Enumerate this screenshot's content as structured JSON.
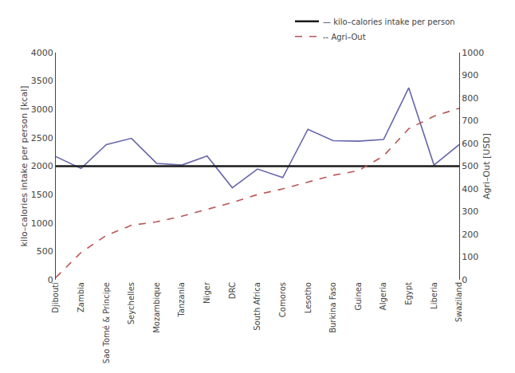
{
  "chart_data": {
    "type": "line",
    "categories": [
      "Djibouti",
      "Zambia",
      "Sao Tomé & Principe",
      "Seychelles",
      "Mozambique",
      "Tanzania",
      "Niger",
      "DRC",
      "South Africa",
      "Comoros",
      "Lesotho",
      "Burkina Faso",
      "Guinea",
      "Algeria",
      "Egypt",
      "Liberia",
      "Swaziland"
    ],
    "series": [
      {
        "values": [
          2170,
          1960,
          2380,
          2490,
          2050,
          2020,
          2180,
          1620,
          1950,
          1800,
          2650,
          2450,
          2440,
          2470,
          3380,
          2020,
          2380
        ],
        "color": "#6666aa",
        "line_style": "solid"
      },
      {
        "name": "-- Agri–Out",
        "values": [
          10,
          120,
          195,
          240,
          255,
          280,
          310,
          340,
          375,
          400,
          430,
          460,
          480,
          545,
          665,
          720,
          755
        ],
        "color": "#bb5555",
        "line_style": "dashed",
        "axis": "y2"
      }
    ],
    "reference": {
      "name": "— kilo–calories intake per person",
      "value": 2000,
      "color": "#1a1a1a"
    },
    "ylabel": "kilo–calories intake per person [kcal]",
    "y2label": "Agri–Out [USD]",
    "ylim": [
      0,
      4000
    ],
    "yticks": [
      0,
      500,
      1000,
      1500,
      2000,
      2500,
      3000,
      3500,
      4000
    ],
    "y2lim": [
      0,
      1000
    ],
    "y2ticks": [
      0,
      100,
      200,
      300,
      400,
      500,
      600,
      700,
      800,
      900,
      1000
    ],
    "legend": "upper right",
    "grid": false
  }
}
